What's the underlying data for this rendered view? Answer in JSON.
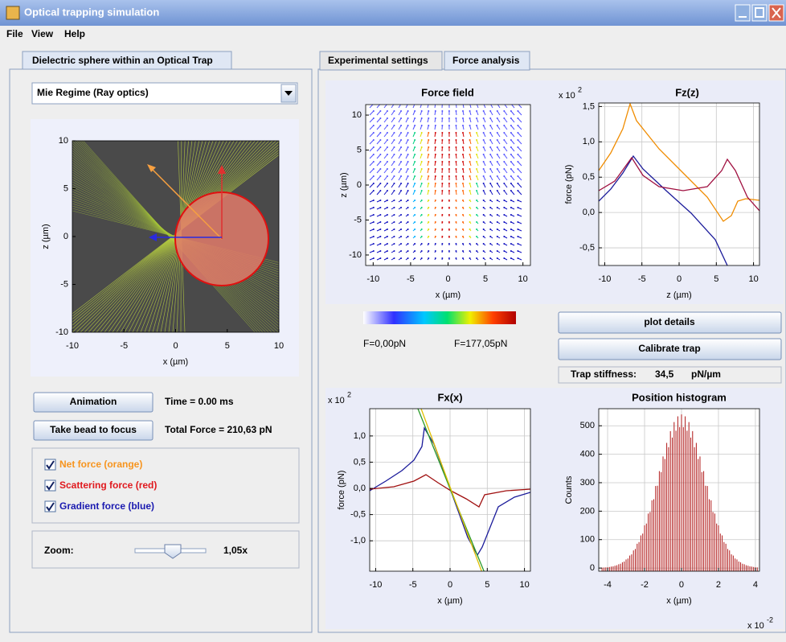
{
  "window": {
    "title": "Optical trapping simulation"
  },
  "menu": [
    "File",
    "View",
    "Help"
  ],
  "left_panel": {
    "tab": "Dielectric sphere within an Optical Trap",
    "regime": "Mie Regime (Ray optics)",
    "simulation_plot": {
      "xlabel": "x (µm)",
      "ylabel": "z (µm)",
      "xlim": [
        -10,
        10
      ],
      "ylim": [
        -10,
        10
      ],
      "xticks": [
        -10,
        -5,
        0,
        5,
        10
      ],
      "yticks": [
        -10,
        -5,
        0,
        5,
        10
      ],
      "grid": false
    },
    "animation_button": "Animation",
    "time": "Time = 0.00 ms",
    "focus_button": "Take bead to focus",
    "total_force": "Total Force = 210,63 pN",
    "checkboxes": [
      {
        "label": "Net force (orange)",
        "color": "#f7941d",
        "checked": true
      },
      {
        "label": "Scattering force (red)",
        "color": "#e0191e",
        "checked": true
      },
      {
        "label": "Gradient force (blue)",
        "color": "#1a1ab0",
        "checked": true
      }
    ],
    "zoom": {
      "label": "Zoom:",
      "value": "1,05x"
    }
  },
  "right_panel": {
    "tabs": [
      "Experimental settings",
      "Force analysis"
    ],
    "selected_tab": 1,
    "force_field": {
      "title": "Force field",
      "xlabel": "x (µm)",
      "ylabel": "z (µm)",
      "xlim": [
        -11,
        11
      ],
      "ylim": [
        -11.5,
        11.5
      ],
      "xticks": [
        -10,
        -5,
        0,
        5,
        10
      ],
      "yticks": [
        -10,
        -5,
        0,
        5,
        10
      ],
      "grid": false
    },
    "colorbar": {
      "min_label": "F=0,00pN",
      "max_label": "F=177,05pN"
    },
    "fz_plot": {
      "title": "Fz(z)",
      "scale": "x 10",
      "exponent": "2",
      "xlabel": "z (µm)",
      "ylabel": "force (pN)",
      "xlim": [
        -10.8,
        10.8
      ],
      "ylim": [
        -0.75,
        1.55
      ],
      "xticks": [
        -10,
        -5,
        0,
        5,
        10
      ],
      "yticks": [
        {
          "value": -0.5,
          "label": "-0,5"
        },
        {
          "value": 0,
          "label": "0,0"
        },
        {
          "value": 0.5,
          "label": "0,5"
        },
        {
          "value": 1,
          "label": "1,0"
        },
        {
          "value": 1.5,
          "label": "1,5"
        }
      ],
      "grid": true
    },
    "plot_details_button": "plot details",
    "calibrate_button": "Calibrate trap",
    "stiffness": {
      "label": "Trap stiffness:",
      "value": "34,5",
      "unit": "pN/µm"
    },
    "fx_plot": {
      "title": "Fx(x)",
      "scale": "x 10",
      "exponent": "2",
      "xlabel": "x (µm)",
      "ylabel": "force (pN)",
      "xlim": [
        -10.8,
        10.8
      ],
      "ylim": [
        -1.58,
        1.52
      ],
      "xticks": [
        -10,
        -5,
        0,
        5,
        10
      ],
      "yticks": [
        {
          "value": -1,
          "label": "-1,0"
        },
        {
          "value": -0.5,
          "label": "-0,5"
        },
        {
          "value": 0,
          "label": "0,0"
        },
        {
          "value": 0.5,
          "label": "0,5"
        },
        {
          "value": 1,
          "label": "1,0"
        }
      ],
      "grid": true
    },
    "histogram": {
      "title": "Position histogram",
      "scale": "x 10",
      "exponent": "-2",
      "xlabel": "x (µm)",
      "ylabel": "Counts",
      "xlim": [
        -4.48,
        4.22
      ],
      "ylim": [
        -11,
        560
      ],
      "xticks": [
        -4,
        -2,
        0,
        2,
        4
      ],
      "yticks": [
        0,
        100,
        200,
        300,
        400,
        500
      ],
      "grid": true
    }
  }
}
